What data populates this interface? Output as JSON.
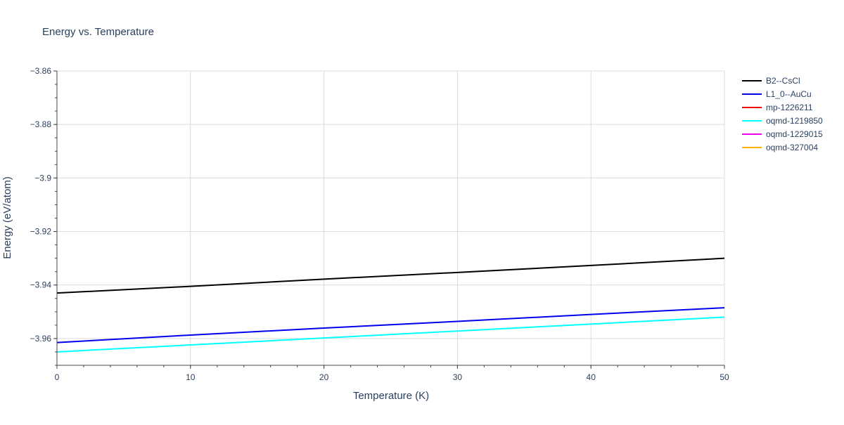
{
  "chart_data": {
    "type": "line",
    "title": "Energy vs. Temperature",
    "xlabel": "Temperature (K)",
    "ylabel": "Energy (eV/atom)",
    "xlim": [
      0,
      50
    ],
    "ylim": [
      -3.97,
      -3.86
    ],
    "x_ticks": [
      0,
      10,
      20,
      30,
      40,
      50
    ],
    "x_tick_labels": [
      "0",
      "10",
      "20",
      "30",
      "40",
      "50"
    ],
    "y_ticks": [
      -3.86,
      -3.88,
      -3.9,
      -3.92,
      -3.94,
      -3.96
    ],
    "y_tick_labels": [
      "−3.86",
      "−3.88",
      "−3.9",
      "−3.92",
      "−3.94",
      "−3.96"
    ],
    "grid": true,
    "legend_position": "top-right, outside plot",
    "series": [
      {
        "name": "B2--CsCl",
        "color": "#000000",
        "x": [
          0,
          10,
          20,
          30,
          40,
          50
        ],
        "y": [
          -3.943,
          -3.9405,
          -3.9378,
          -3.9353,
          -3.9327,
          -3.93
        ]
      },
      {
        "name": "L1_0--AuCu",
        "color": "#0000ee",
        "x": [
          0,
          10,
          20,
          30,
          40,
          50
        ],
        "y": [
          -3.9615,
          -3.9587,
          -3.9561,
          -3.9536,
          -3.951,
          -3.9485
        ]
      },
      {
        "name": "mp-1226211",
        "color": "#ee0000",
        "x": [],
        "y": []
      },
      {
        "name": "oqmd-1219850",
        "color": "#00ffff",
        "x": [
          0,
          10,
          20,
          30,
          40,
          50
        ],
        "y": [
          -3.965,
          -3.9624,
          -3.9598,
          -3.9572,
          -3.9546,
          -3.952
        ]
      },
      {
        "name": "oqmd-1229015",
        "color": "#ee00ee",
        "x": [],
        "y": []
      },
      {
        "name": "oqmd-327004",
        "color": "#ffb000",
        "x": [],
        "y": []
      }
    ]
  }
}
